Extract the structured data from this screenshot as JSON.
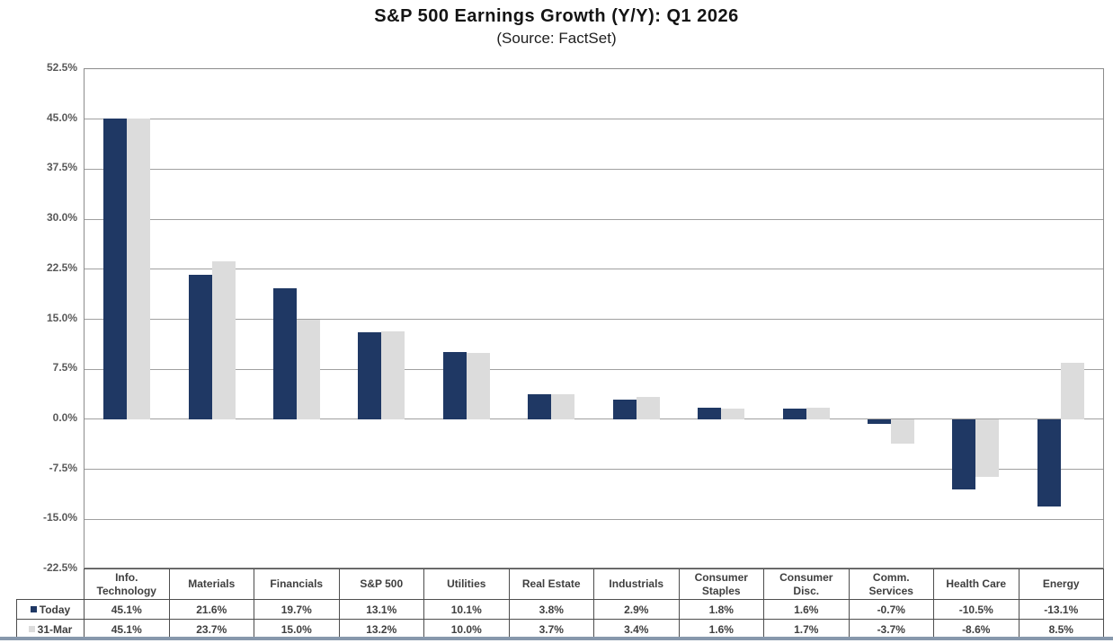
{
  "chart_data": {
    "type": "bar",
    "title": "S&P 500 Earnings Growth (Y/Y): Q1 2026",
    "subtitle": "(Source: FactSet)",
    "categories": [
      "Info. Technology",
      "Materials",
      "Financials",
      "S&P 500",
      "Utilities",
      "Real Estate",
      "Industrials",
      "Consumer Staples",
      "Consumer Disc.",
      "Comm. Services",
      "Health Care",
      "Energy"
    ],
    "series": [
      {
        "name": "Today",
        "color": "#1f3864",
        "values": [
          45.1,
          21.6,
          19.7,
          13.1,
          10.1,
          3.8,
          2.9,
          1.8,
          1.6,
          -0.7,
          -10.5,
          -13.1
        ]
      },
      {
        "name": "31-Mar",
        "color": "#dcdcdc",
        "values": [
          45.1,
          23.7,
          15.0,
          13.2,
          10.0,
          3.7,
          3.4,
          1.6,
          1.7,
          -3.7,
          -8.6,
          8.5
        ]
      }
    ],
    "y_axis": {
      "min": -22.5,
      "max": 52.5,
      "step": 7.5,
      "ticks": [
        "52.5%",
        "45.0%",
        "37.5%",
        "30.0%",
        "22.5%",
        "15.0%",
        "7.5%",
        "0.0%",
        "-7.5%",
        "-15.0%",
        "-22.5%"
      ]
    },
    "value_suffix": "%",
    "grid": true,
    "legend_position": "table-rows-left"
  },
  "colors": {
    "grid": "#a0a0a0",
    "plot_border": "#8c8c8c",
    "bottom_divider": "#8798ac"
  }
}
